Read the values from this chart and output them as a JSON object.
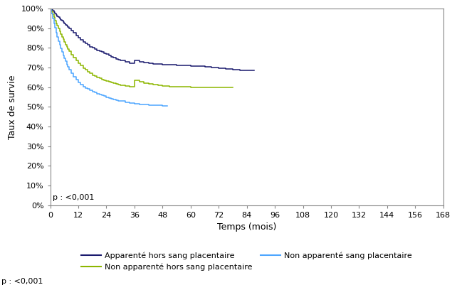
{
  "xlabel": "Temps (mois)",
  "ylabel": "Taux de survie",
  "ylim": [
    0,
    1.0
  ],
  "xlim": [
    0,
    168
  ],
  "xticks": [
    0,
    12,
    24,
    36,
    48,
    60,
    72,
    84,
    96,
    108,
    120,
    132,
    144,
    156,
    168
  ],
  "yticks": [
    0.0,
    0.1,
    0.2,
    0.3,
    0.4,
    0.5,
    0.6,
    0.7,
    0.8,
    0.9,
    1.0
  ],
  "ytick_labels": [
    "0%",
    "10%",
    "20%",
    "30%",
    "40%",
    "50%",
    "60%",
    "70%",
    "80%",
    "90%",
    "100%"
  ],
  "pvalue_text": "p : <0,001",
  "background_color": "#ffffff",
  "series": [
    {
      "label": "Apparenté hors sang placentaire",
      "color": "#1a1a6e",
      "x": [
        0,
        0.5,
        1,
        1.5,
        2,
        2.5,
        3,
        3.5,
        4,
        4.5,
        5,
        5.5,
        6,
        6.5,
        7,
        7.5,
        8,
        9,
        10,
        11,
        12,
        13,
        14,
        15,
        16,
        17,
        18,
        19,
        20,
        21,
        22,
        23,
        24,
        25,
        26,
        27,
        28,
        29,
        30,
        32,
        34,
        36,
        38,
        40,
        42,
        44,
        46,
        48,
        51,
        54,
        57,
        60,
        63,
        66,
        69,
        72,
        75,
        78,
        81,
        84,
        87
      ],
      "y": [
        1.0,
        0.995,
        0.988,
        0.982,
        0.975,
        0.968,
        0.962,
        0.956,
        0.95,
        0.944,
        0.938,
        0.932,
        0.925,
        0.918,
        0.912,
        0.906,
        0.9,
        0.888,
        0.876,
        0.864,
        0.852,
        0.84,
        0.83,
        0.822,
        0.814,
        0.806,
        0.8,
        0.794,
        0.788,
        0.783,
        0.778,
        0.773,
        0.768,
        0.762,
        0.756,
        0.75,
        0.745,
        0.74,
        0.735,
        0.728,
        0.722,
        0.736,
        0.73,
        0.725,
        0.722,
        0.72,
        0.718,
        0.716,
        0.714,
        0.712,
        0.71,
        0.708,
        0.706,
        0.703,
        0.7,
        0.698,
        0.694,
        0.69,
        0.687,
        0.684,
        0.684
      ]
    },
    {
      "label": "Non apparenté hors sang placentaire",
      "color": "#8db600",
      "x": [
        0,
        0.5,
        1,
        1.5,
        2,
        2.5,
        3,
        3.5,
        4,
        4.5,
        5,
        5.5,
        6,
        6.5,
        7,
        7.5,
        8,
        9,
        10,
        11,
        12,
        13,
        14,
        15,
        16,
        17,
        18,
        19,
        20,
        21,
        22,
        23,
        24,
        25,
        26,
        27,
        28,
        29,
        30,
        32,
        34,
        36,
        38,
        40,
        42,
        44,
        46,
        48,
        51,
        54,
        57,
        60,
        63,
        66,
        69,
        72,
        75,
        78
      ],
      "y": [
        1.0,
        0.985,
        0.97,
        0.955,
        0.94,
        0.926,
        0.912,
        0.898,
        0.884,
        0.87,
        0.856,
        0.843,
        0.83,
        0.817,
        0.804,
        0.793,
        0.782,
        0.766,
        0.75,
        0.736,
        0.722,
        0.71,
        0.698,
        0.688,
        0.678,
        0.67,
        0.662,
        0.656,
        0.65,
        0.645,
        0.64,
        0.636,
        0.632,
        0.628,
        0.624,
        0.62,
        0.617,
        0.614,
        0.611,
        0.606,
        0.601,
        0.634,
        0.628,
        0.622,
        0.617,
        0.613,
        0.61,
        0.607,
        0.604,
        0.602,
        0.601,
        0.6,
        0.6,
        0.6,
        0.6,
        0.6,
        0.6,
        0.6
      ]
    },
    {
      "label": "Non apparenté sang placentaire",
      "color": "#4da6ff",
      "x": [
        0,
        0.5,
        1,
        1.5,
        2,
        2.5,
        3,
        3.5,
        4,
        4.5,
        5,
        5.5,
        6,
        6.5,
        7,
        7.5,
        8,
        9,
        10,
        11,
        12,
        13,
        14,
        15,
        16,
        17,
        18,
        19,
        20,
        21,
        22,
        23,
        24,
        25,
        26,
        27,
        28,
        29,
        30,
        32,
        34,
        36,
        38,
        40,
        42,
        44,
        46,
        48,
        50
      ],
      "y": [
        1.0,
        0.975,
        0.95,
        0.926,
        0.902,
        0.878,
        0.855,
        0.835,
        0.816,
        0.798,
        0.78,
        0.763,
        0.746,
        0.731,
        0.716,
        0.702,
        0.69,
        0.672,
        0.654,
        0.639,
        0.624,
        0.614,
        0.604,
        0.596,
        0.59,
        0.584,
        0.578,
        0.572,
        0.568,
        0.563,
        0.558,
        0.554,
        0.55,
        0.546,
        0.542,
        0.538,
        0.535,
        0.532,
        0.529,
        0.524,
        0.52,
        0.517,
        0.514,
        0.512,
        0.51,
        0.508,
        0.507,
        0.506,
        0.505
      ]
    }
  ]
}
